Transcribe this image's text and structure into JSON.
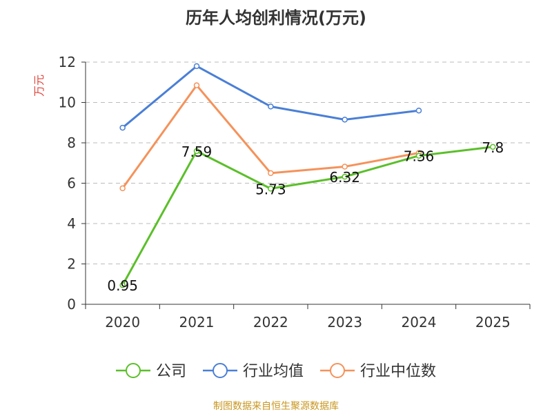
{
  "chart_data": {
    "type": "line",
    "title": "历年人均创利情况(万元)",
    "ylabel": "万元",
    "xlabel": "",
    "categories": [
      "2020",
      "2021",
      "2022",
      "2023",
      "2024",
      "2025"
    ],
    "ylim": [
      0,
      12
    ],
    "yticks": [
      0,
      2,
      4,
      6,
      8,
      10,
      12
    ],
    "grid": true,
    "legend_position": "bottom",
    "series": [
      {
        "name": "公司",
        "color": "#5bbf2a",
        "values": [
          0.95,
          7.59,
          5.73,
          6.32,
          7.36,
          7.8
        ],
        "labels": [
          "0.95",
          "7.59",
          "5.73",
          "6.32",
          "7.36",
          "7.8"
        ]
      },
      {
        "name": "行业均值",
        "color": "#4a7fd6",
        "values": [
          8.75,
          11.8,
          9.8,
          9.15,
          9.6,
          null
        ]
      },
      {
        "name": "行业中位数",
        "color": "#f5925a",
        "values": [
          5.75,
          10.85,
          6.5,
          6.82,
          7.5,
          null
        ]
      }
    ]
  },
  "footer": {
    "source": "制图数据来自恒生聚源数据库"
  }
}
